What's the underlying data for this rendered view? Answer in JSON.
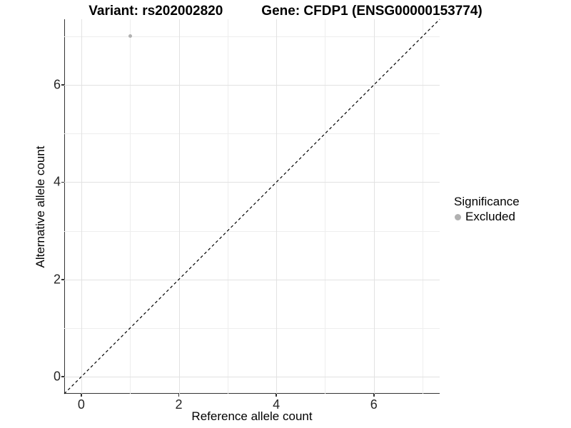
{
  "chart_data": {
    "type": "scatter",
    "title_left": "Variant: rs202002820",
    "title_right": "Gene: CFDP1 (ENSG00000153774)",
    "xlabel": "Reference allele count",
    "ylabel": "Alternative allele count",
    "xlim": [
      -0.35,
      7.35
    ],
    "ylim": [
      -0.35,
      7.35
    ],
    "x_ticks": [
      0,
      2,
      4,
      6
    ],
    "y_ticks": [
      0,
      2,
      4,
      6
    ],
    "x_minor_ticks": [
      1,
      3,
      5,
      7
    ],
    "y_minor_ticks": [
      1,
      3,
      5,
      7
    ],
    "grid": true,
    "points": [
      {
        "x": 1,
        "y": 7,
        "series": "Excluded"
      }
    ],
    "identity_line": {
      "style": "dashed",
      "from": [
        -0.35,
        -0.35
      ],
      "to": [
        7.35,
        7.35
      ],
      "color": "#000000"
    },
    "legend": {
      "position": "right",
      "title": "Significance",
      "items": [
        {
          "label": "Excluded",
          "color": "#b1b1b1"
        }
      ]
    },
    "colors": {
      "point": "#b1b1b1",
      "grid_major": "#e2e2e2",
      "grid_minor": "#eeeeee",
      "axis_line": "#333333"
    }
  }
}
